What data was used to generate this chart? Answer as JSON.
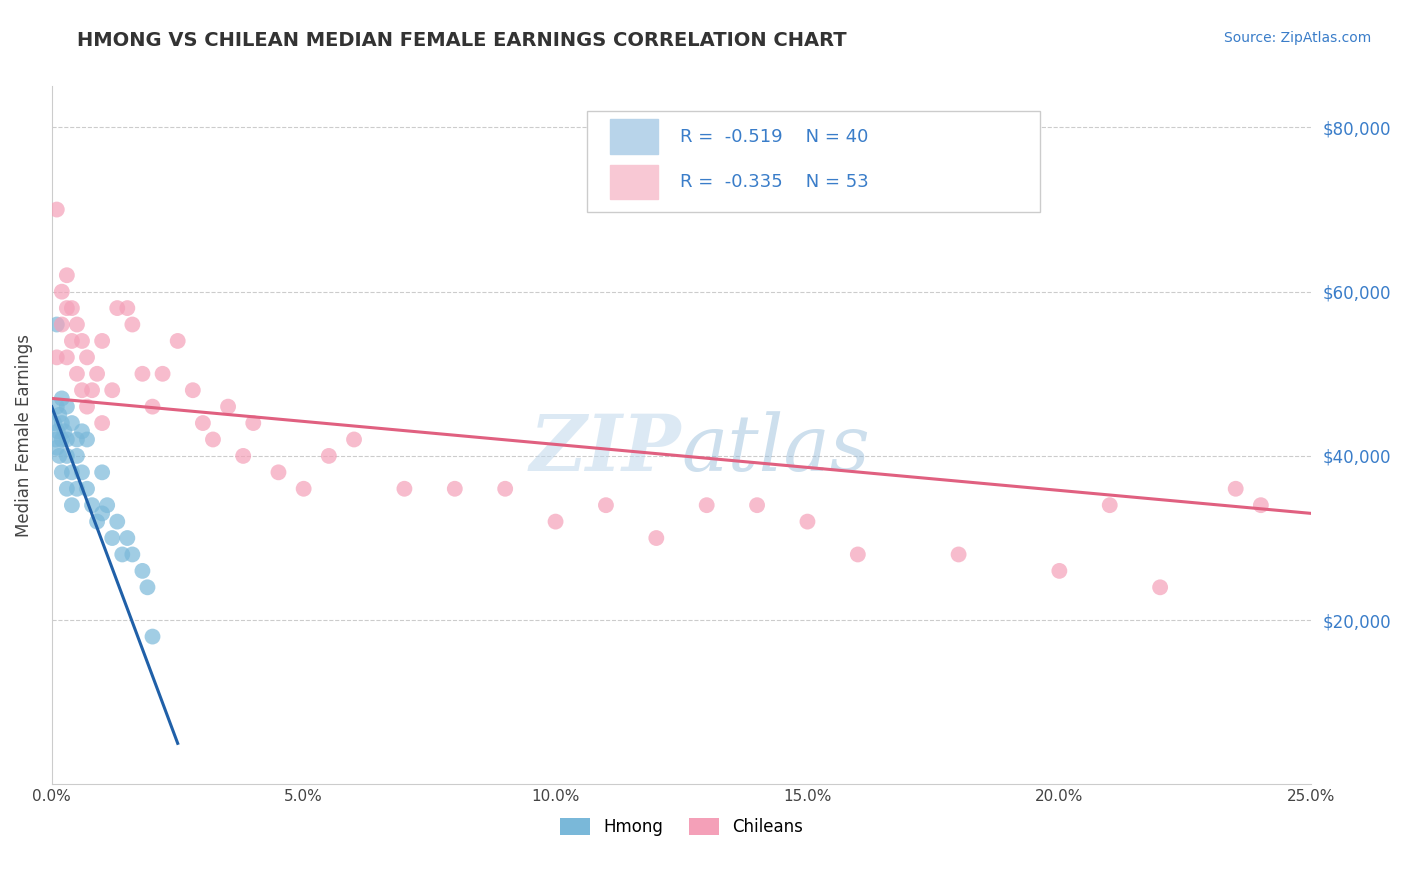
{
  "title": "HMONG VS CHILEAN MEDIAN FEMALE EARNINGS CORRELATION CHART",
  "source_text": "Source: ZipAtlas.com",
  "ylabel": "Median Female Earnings",
  "watermark": "ZIPatlas",
  "xlim": [
    0.0,
    0.25
  ],
  "ylim": [
    0,
    85000
  ],
  "yticks": [
    20000,
    40000,
    60000,
    80000
  ],
  "ytick_labels": [
    "$20,000",
    "$40,000",
    "$60,000",
    "$80,000"
  ],
  "xticks": [
    0.0,
    0.05,
    0.1,
    0.15,
    0.2,
    0.25
  ],
  "xtick_labels": [
    "0.0%",
    "5.0%",
    "10.0%",
    "15.0%",
    "20.0%",
    "25.0%"
  ],
  "hmong_R": "-0.519",
  "hmong_N": "40",
  "chilean_R": "-0.335",
  "chilean_N": "53",
  "hmong_color": "#7ab8d9",
  "chilean_color": "#f4a0b8",
  "hmong_line_color": "#2060a8",
  "chilean_line_color": "#e06080",
  "legend_box_color_hmong": "#b8d4ea",
  "legend_box_color_chilean": "#f8c8d4",
  "hmong_x": [
    0.0005,
    0.0008,
    0.001,
    0.001,
    0.001,
    0.0012,
    0.0015,
    0.0015,
    0.002,
    0.002,
    0.002,
    0.002,
    0.0025,
    0.003,
    0.003,
    0.003,
    0.003,
    0.004,
    0.004,
    0.004,
    0.005,
    0.005,
    0.005,
    0.006,
    0.006,
    0.007,
    0.007,
    0.008,
    0.009,
    0.01,
    0.01,
    0.011,
    0.012,
    0.013,
    0.014,
    0.015,
    0.016,
    0.018,
    0.019,
    0.02
  ],
  "hmong_y": [
    44000,
    42000,
    56000,
    46000,
    41000,
    43000,
    45000,
    40000,
    47000,
    44000,
    42000,
    38000,
    43000,
    46000,
    42000,
    40000,
    36000,
    44000,
    38000,
    34000,
    42000,
    40000,
    36000,
    43000,
    38000,
    42000,
    36000,
    34000,
    32000,
    38000,
    33000,
    34000,
    30000,
    32000,
    28000,
    30000,
    28000,
    26000,
    24000,
    18000
  ],
  "hmong_line_x": [
    0.0,
    0.025
  ],
  "hmong_line_y": [
    46000,
    5000
  ],
  "chilean_x": [
    0.001,
    0.001,
    0.002,
    0.002,
    0.003,
    0.003,
    0.003,
    0.004,
    0.004,
    0.005,
    0.005,
    0.006,
    0.006,
    0.007,
    0.007,
    0.008,
    0.009,
    0.01,
    0.01,
    0.012,
    0.013,
    0.015,
    0.016,
    0.018,
    0.02,
    0.022,
    0.025,
    0.028,
    0.03,
    0.032,
    0.035,
    0.038,
    0.04,
    0.045,
    0.05,
    0.055,
    0.06,
    0.07,
    0.08,
    0.09,
    0.1,
    0.11,
    0.12,
    0.13,
    0.14,
    0.15,
    0.16,
    0.18,
    0.2,
    0.21,
    0.22,
    0.235,
    0.24
  ],
  "chilean_y": [
    70000,
    52000,
    60000,
    56000,
    62000,
    58000,
    52000,
    58000,
    54000,
    56000,
    50000,
    54000,
    48000,
    52000,
    46000,
    48000,
    50000,
    54000,
    44000,
    48000,
    58000,
    58000,
    56000,
    50000,
    46000,
    50000,
    54000,
    48000,
    44000,
    42000,
    46000,
    40000,
    44000,
    38000,
    36000,
    40000,
    42000,
    36000,
    36000,
    36000,
    32000,
    34000,
    30000,
    34000,
    34000,
    32000,
    28000,
    28000,
    26000,
    34000,
    24000,
    36000,
    34000
  ],
  "chilean_line_x": [
    0.0,
    0.25
  ],
  "chilean_line_y": [
    47000,
    33000
  ]
}
